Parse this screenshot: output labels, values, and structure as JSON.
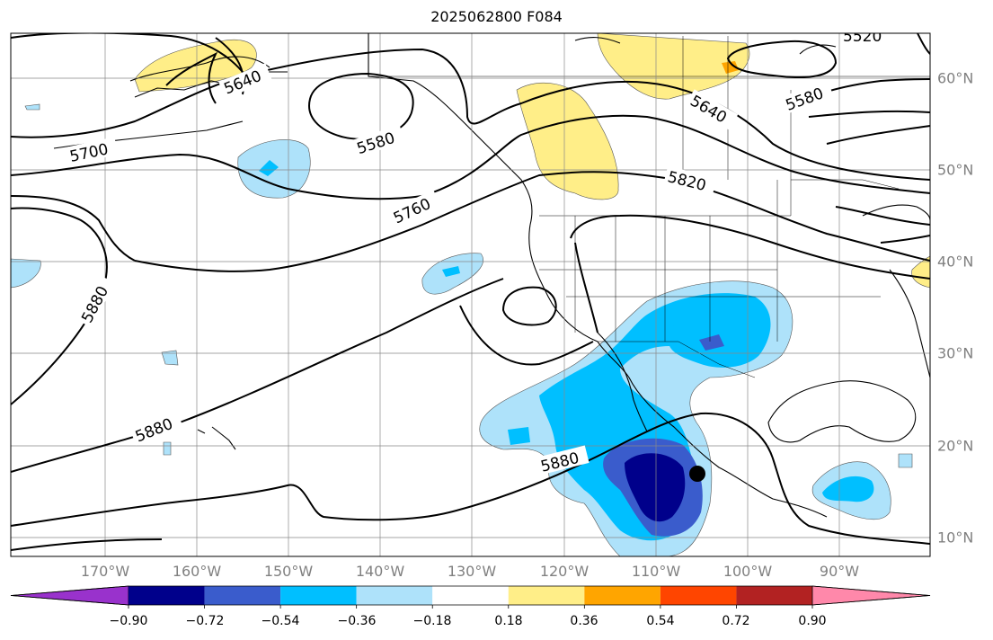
{
  "title": "2025062800 F084",
  "lon_labels": [
    "170°W",
    "160°W",
    "150°W",
    "140°W",
    "130°W",
    "120°W",
    "110°W",
    "100°W",
    "90°W"
  ],
  "lat_labels": [
    "60°N",
    "50°N",
    "40°N",
    "30°N",
    "20°N",
    "10°N"
  ],
  "contour_labels": [
    "5520",
    "5580",
    "5640",
    "5700",
    "5760",
    "5820",
    "5880",
    "5880",
    "5880",
    "5580",
    "5640"
  ],
  "colorbar": {
    "ticks": [
      "−0.90",
      "−0.72",
      "−0.54",
      "−0.36",
      "−0.18",
      "0.18",
      "0.36",
      "0.54",
      "0.72",
      "0.90"
    ],
    "colors": [
      "#9932cc",
      "#00008b",
      "#3a5ccc",
      "#00bfff",
      "#aee2fa",
      "#ffffff",
      "#ffee88",
      "#ffa500",
      "#ff4500",
      "#b22222",
      "#ff88aa"
    ],
    "extend": "both"
  },
  "marker": "storm-center-dot"
}
